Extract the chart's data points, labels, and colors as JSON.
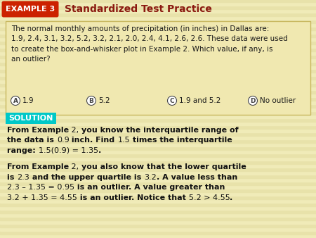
{
  "bg_color": "#f0ebb8",
  "header_stripe_colors": [
    "#f0ebb8",
    "#e8e2aa"
  ],
  "example_box_color": "#cc2200",
  "example_text": "EXAMPLE 3",
  "header_title": "Standardized Test Practice",
  "header_title_color": "#8B1A10",
  "question_box_bg": "#f0e8b0",
  "question_box_edge": "#c8b860",
  "solution_box_color": "#00c8c8",
  "solution_text": "SOLUTION",
  "text_color": "#1a1a1a",
  "bold_text_color": "#000000",
  "white": "#ffffff",
  "circle_edge": "#444444",
  "fs_question": 7.5,
  "fs_choices": 7.5,
  "fs_solution": 8.5,
  "fs_example_badge": 8.0,
  "fs_header_title": 10.0,
  "fs_solution_label": 8.0
}
